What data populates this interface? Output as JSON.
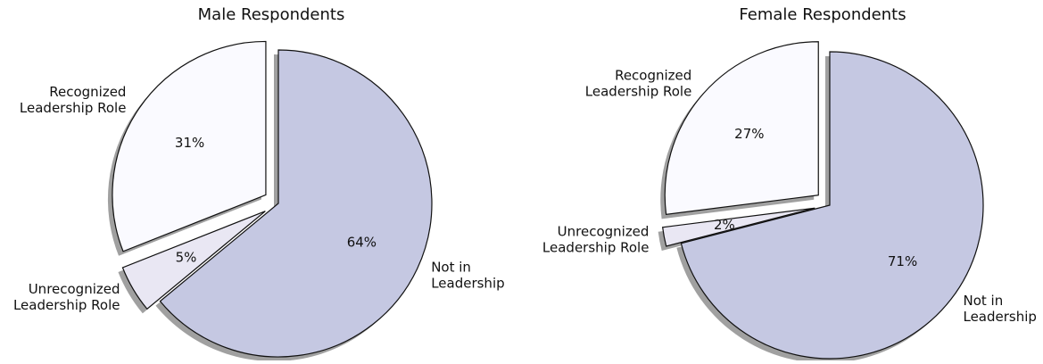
{
  "chart_data": [
    {
      "type": "pie",
      "title": "Male Respondents",
      "categories": [
        "Not in\nLeadership",
        "Unrecognized\nLeadership Role",
        "Recognized\nLeadership Role"
      ],
      "values": [
        64,
        5,
        31
      ],
      "value_labels": [
        "64%",
        "5%",
        "31%"
      ],
      "colors": [
        "#c5c8e2",
        "#e9e7f3",
        "#fafaff"
      ],
      "explode": [
        false,
        true,
        true
      ],
      "shadow": true
    },
    {
      "type": "pie",
      "title": "Female Respondents",
      "categories": [
        "Not in\nLeadership",
        "Unrecognized\nLeadership Role",
        "Recognized\nLeadership Role"
      ],
      "values": [
        71,
        2,
        27
      ],
      "value_labels": [
        "71%",
        "2%",
        "27%"
      ],
      "colors": [
        "#c5c8e2",
        "#e9e7f3",
        "#fafaff"
      ],
      "explode": [
        false,
        true,
        true
      ],
      "shadow": true
    }
  ]
}
